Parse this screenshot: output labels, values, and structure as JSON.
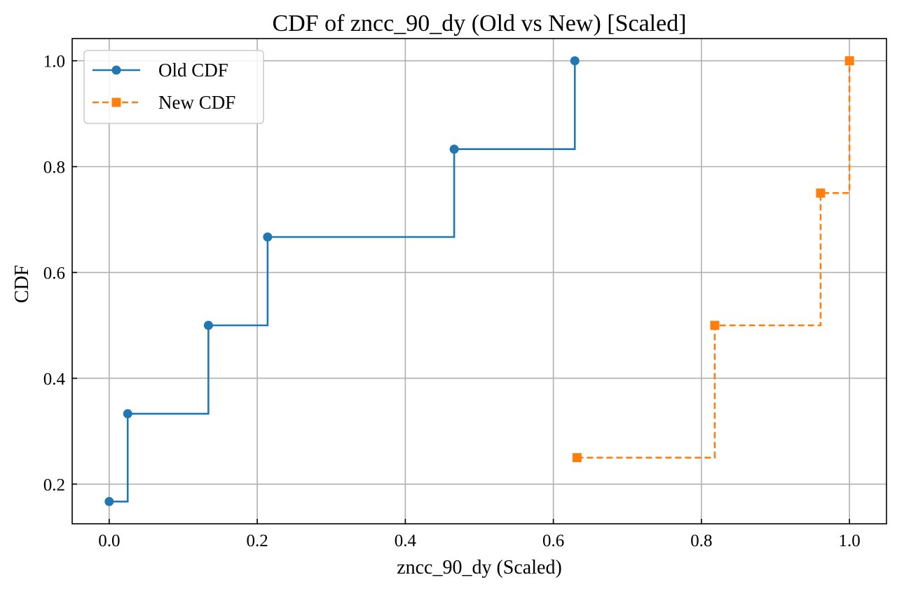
{
  "chart_data": {
    "type": "line",
    "step": "post",
    "title": "CDF of zncc_90_dy (Old vs New) [Scaled]",
    "xlabel": "zncc_90_dy (Scaled)",
    "ylabel": "CDF",
    "xlim": [
      -0.05,
      1.05
    ],
    "ylim": [
      0.125,
      1.042
    ],
    "xticks": [
      0.0,
      0.2,
      0.4,
      0.6,
      0.8,
      1.0
    ],
    "xtick_labels": [
      "0.0",
      "0.2",
      "0.4",
      "0.6",
      "0.8",
      "1.0"
    ],
    "yticks": [
      0.2,
      0.4,
      0.6,
      0.8,
      1.0
    ],
    "ytick_labels": [
      "0.2",
      "0.4",
      "0.6",
      "0.8",
      "1.0"
    ],
    "grid": true,
    "legend_position": "top-left",
    "series": [
      {
        "name": "Old CDF",
        "color": "#1f77b4",
        "linestyle": "solid",
        "marker": "circle",
        "x": [
          0.0,
          0.025,
          0.134,
          0.214,
          0.466,
          0.629
        ],
        "y": [
          0.167,
          0.333,
          0.5,
          0.667,
          0.833,
          1.0
        ]
      },
      {
        "name": "New CDF",
        "color": "#ff7f0e",
        "linestyle": "dashed",
        "marker": "square",
        "x": [
          0.632,
          0.818,
          0.961,
          1.0
        ],
        "y": [
          0.25,
          0.5,
          0.75,
          1.0
        ]
      }
    ]
  }
}
